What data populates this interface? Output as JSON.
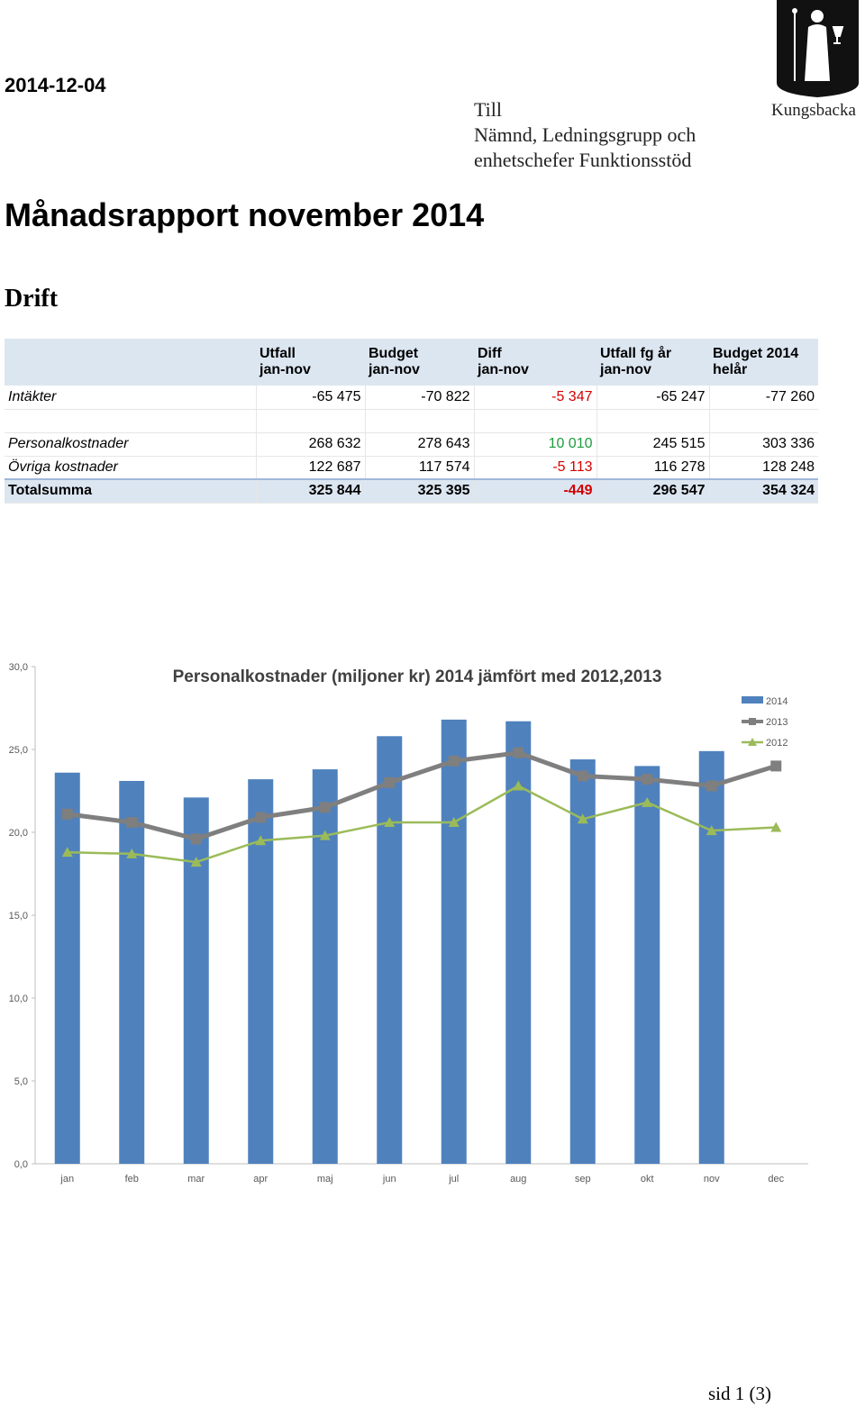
{
  "header": {
    "date": "2014-12-04",
    "to_lines": [
      "Till",
      "Nämnd, Ledningsgrupp och",
      "enhetschefer Funktionsstöd"
    ],
    "logo_text": "Kungsbacka"
  },
  "title": "Månadsrapport november 2014",
  "section": "Drift",
  "table": {
    "headers": [
      [
        "",
        "Utfall",
        "Budget",
        "Diff",
        "Utfall fg år",
        "Budget 2014"
      ],
      [
        "",
        "jan-nov",
        "jan-nov",
        "jan-nov",
        "jan-nov",
        "helår"
      ]
    ],
    "rows": [
      {
        "label": "Intäkter",
        "values": [
          "-65 475",
          "-70 822",
          "-5 347",
          "-65 247",
          "-77 260"
        ],
        "diff_color": "#d40000"
      },
      {
        "label": "",
        "values": [
          "",
          "",
          "",
          "",
          ""
        ],
        "diff_color": ""
      },
      {
        "label": "Personalkostnader",
        "values": [
          "268 632",
          "278 643",
          "10 010",
          "245 515",
          "303 336"
        ],
        "diff_color": "#1f9c3e"
      },
      {
        "label": "Övriga kostnader",
        "values": [
          "122 687",
          "117 574",
          "-5 113",
          "116 278",
          "128 248"
        ],
        "diff_color": "#d40000"
      }
    ],
    "total": {
      "label": "Totalsumma",
      "values": [
        "325 844",
        "325 395",
        "-449",
        "296 547",
        "354 324"
      ],
      "diff_color": "#d40000"
    }
  },
  "chart_data": {
    "type": "bar",
    "title": "Personalkostnader (miljoner kr) 2014 jämfört med 2012,2013",
    "categories": [
      "jan",
      "feb",
      "mar",
      "apr",
      "maj",
      "jun",
      "jul",
      "aug",
      "sep",
      "okt",
      "nov",
      "dec"
    ],
    "ylim": [
      0,
      30
    ],
    "yticks": [
      "0,0",
      "5,0",
      "10,0",
      "15,0",
      "20,0",
      "25,0",
      "30,0"
    ],
    "series": [
      {
        "name": "2014",
        "kind": "bar",
        "color": "#4f81bd",
        "values": [
          23.6,
          23.1,
          22.1,
          23.2,
          23.8,
          25.8,
          26.8,
          26.7,
          24.4,
          24.0,
          24.9,
          null
        ]
      },
      {
        "name": "2013",
        "kind": "line",
        "marker": "square",
        "color": "#7f7f7f",
        "values": [
          21.1,
          20.6,
          19.6,
          20.9,
          21.5,
          23.0,
          24.3,
          24.8,
          23.4,
          23.2,
          22.8,
          24.0
        ]
      },
      {
        "name": "2012",
        "kind": "line",
        "marker": "triangle",
        "color": "#9bbb59",
        "values": [
          18.8,
          18.7,
          18.2,
          19.5,
          19.8,
          20.6,
          20.6,
          22.8,
          20.8,
          21.8,
          20.1,
          20.3
        ]
      }
    ],
    "legend": "right",
    "grid": false
  },
  "footer": "sid 1 (3)"
}
